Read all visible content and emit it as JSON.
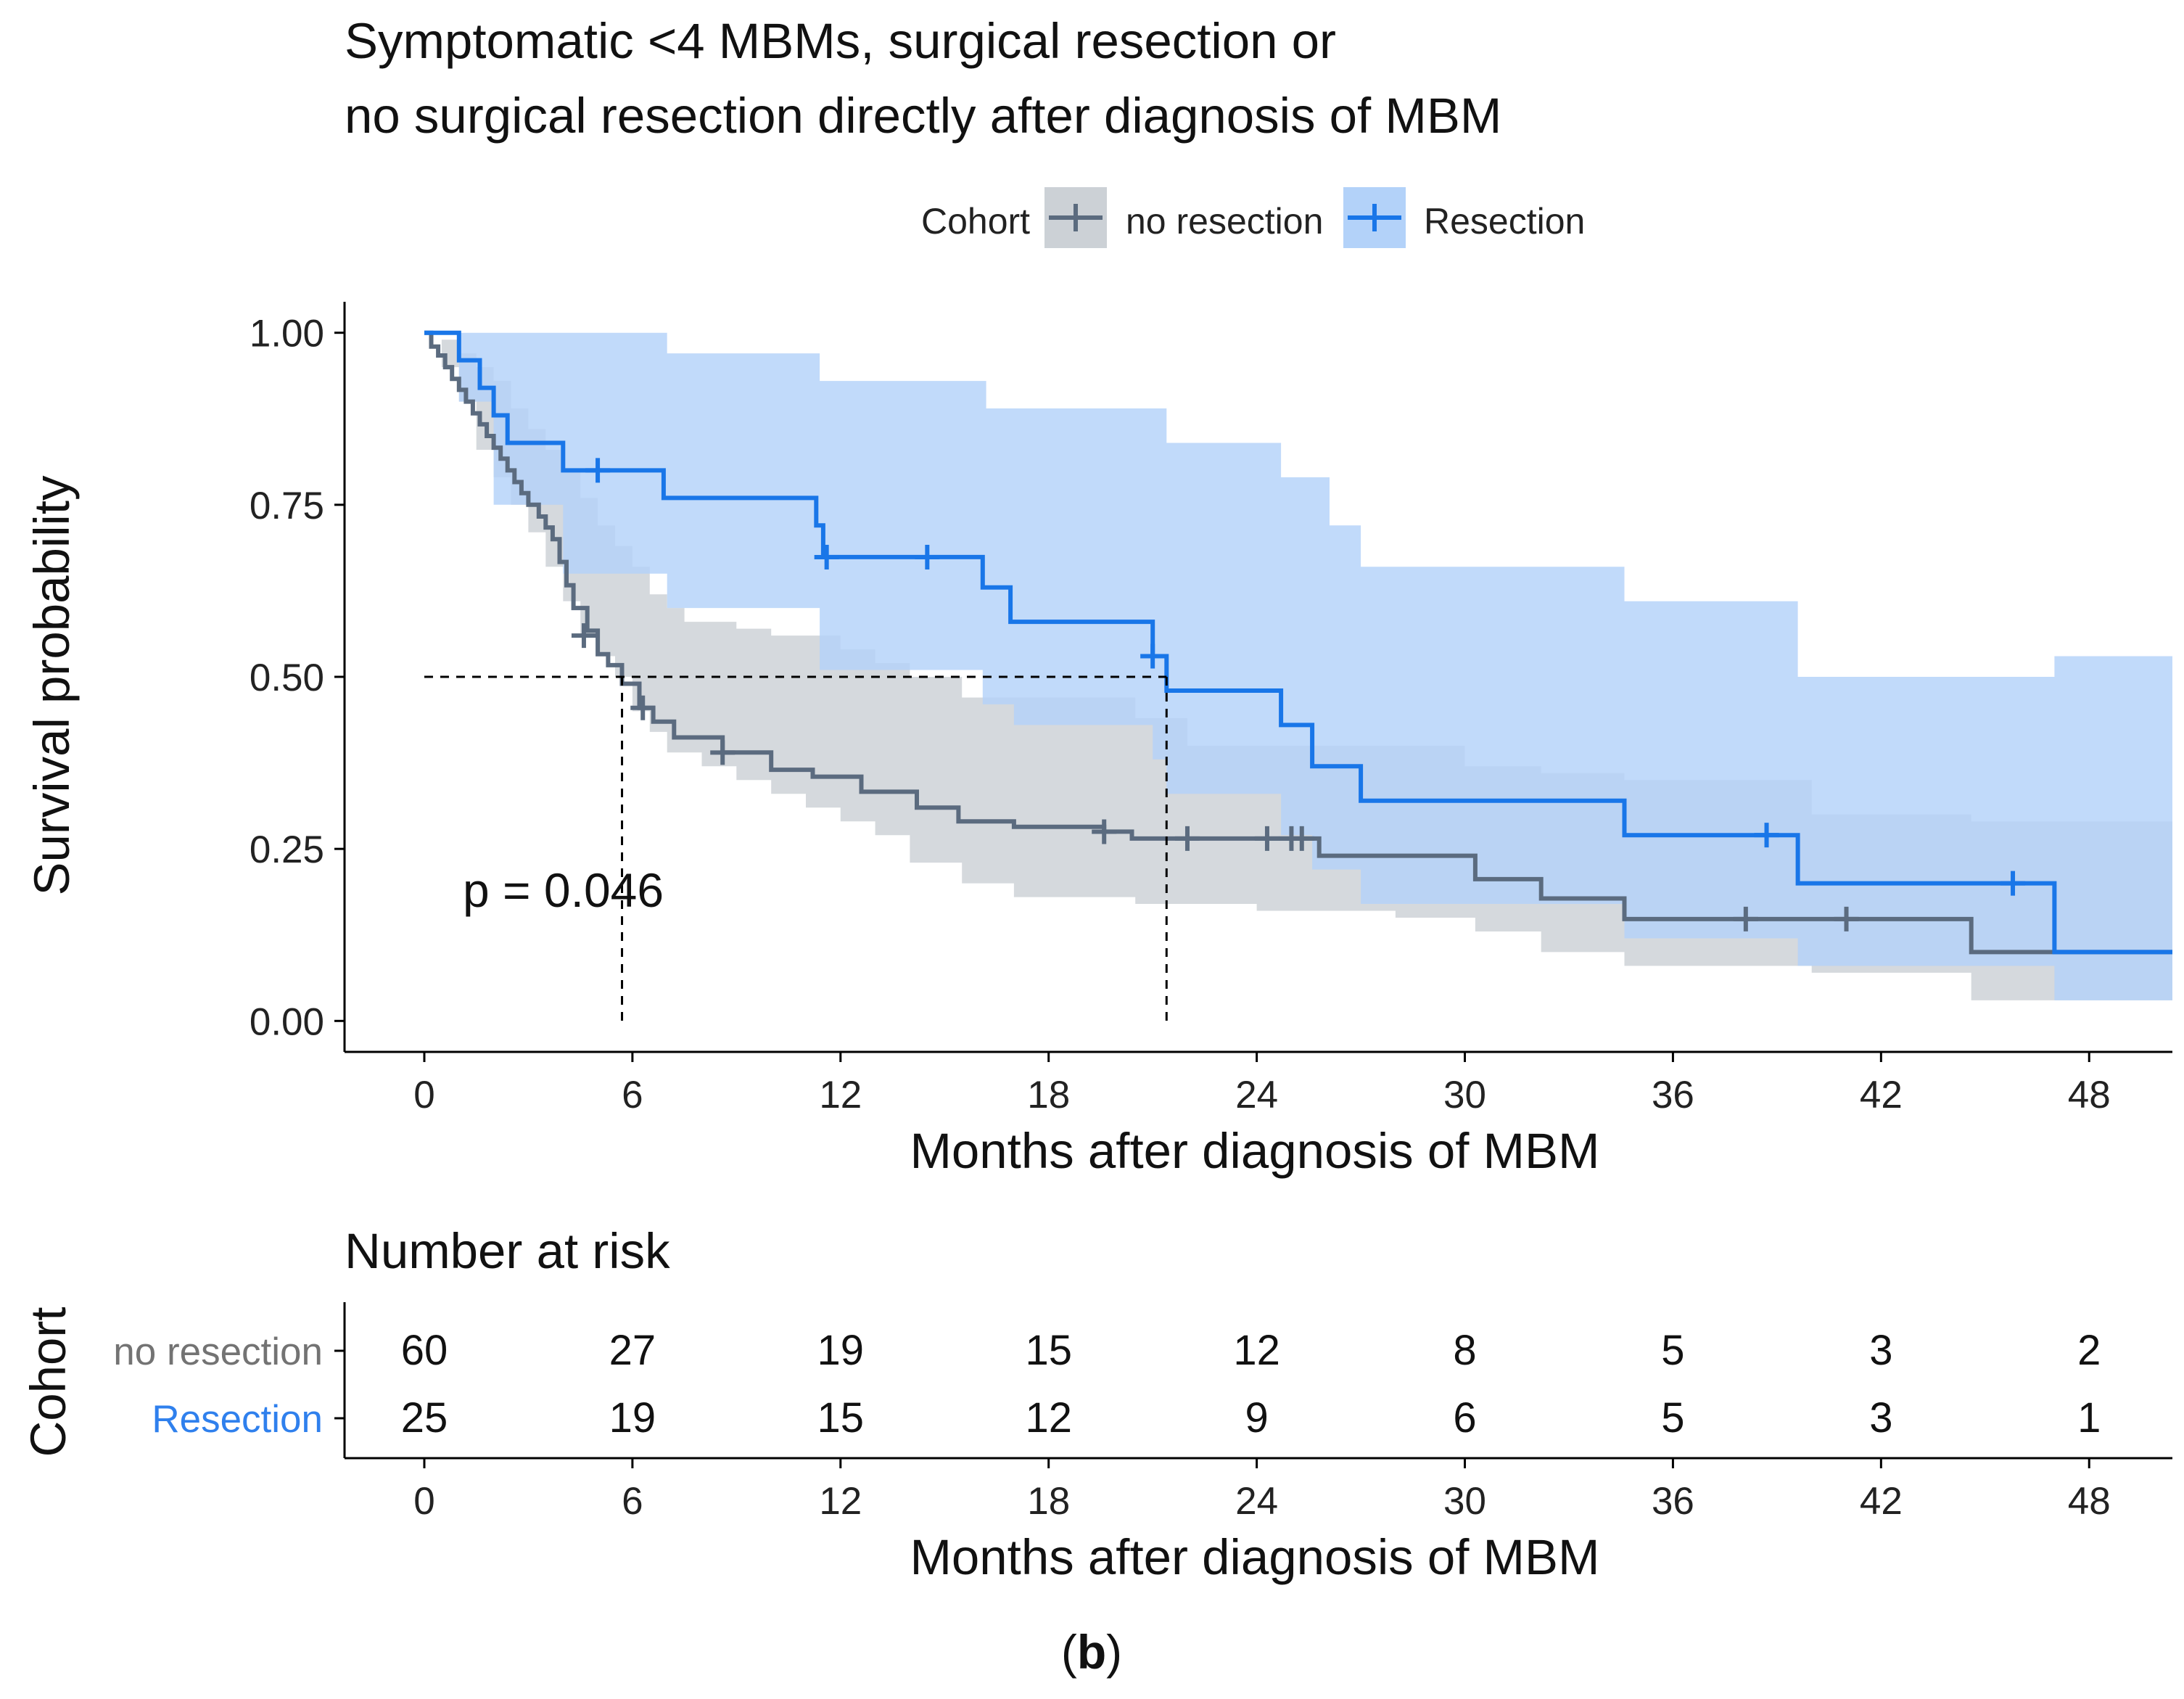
{
  "chart_data": [
    {
      "type": "line",
      "subtype": "kaplan-meier",
      "title": "Symptomatic <4 MBMs, surgical resection or\nno surgical resection directly after diagnosis of MBM",
      "title_lines": [
        "Symptomatic <4 MBMs, surgical resection or",
        "no surgical resection directly after diagnosis of MBM"
      ],
      "xlabel": "Months after diagnosis of MBM",
      "ylabel": "Survival probability",
      "xlim": [
        -2.3,
        50.4
      ],
      "ylim": [
        -0.045,
        1.045
      ],
      "xticks": [
        "0",
        "6",
        "12",
        "18",
        "24",
        "30",
        "36",
        "42",
        "48"
      ],
      "xtick_values": [
        0,
        6,
        12,
        18,
        24,
        30,
        36,
        42,
        48
      ],
      "yticks": [
        "0.00",
        "0.25",
        "0.50",
        "0.75",
        "1.00"
      ],
      "ytick_values": [
        0,
        0.25,
        0.5,
        0.75,
        1.0
      ],
      "legend": {
        "title": "Cohort",
        "position": "top",
        "entries": [
          "no resection",
          "Resection"
        ]
      },
      "annotation": "p = 0.046",
      "annotation_at": [
        1.1,
        0.2
      ],
      "median_lines": [
        {
          "y": 0.5,
          "x": 5.7
        },
        {
          "y": 0.5,
          "x": 21.4
        }
      ],
      "series": [
        {
          "name": "no resection",
          "color": "#5b6b7f",
          "band_color": "#ccd1d6",
          "steps": [
            [
              0,
              1.0
            ],
            [
              0.2,
              0.98
            ],
            [
              0.4,
              0.967
            ],
            [
              0.6,
              0.95
            ],
            [
              0.8,
              0.933
            ],
            [
              1.0,
              0.917
            ],
            [
              1.2,
              0.9
            ],
            [
              1.4,
              0.883
            ],
            [
              1.6,
              0.867
            ],
            [
              1.8,
              0.85
            ],
            [
              2.0,
              0.833
            ],
            [
              2.2,
              0.817
            ],
            [
              2.4,
              0.8
            ],
            [
              2.6,
              0.783
            ],
            [
              2.8,
              0.767
            ],
            [
              3.0,
              0.75
            ],
            [
              3.3,
              0.733
            ],
            [
              3.5,
              0.717
            ],
            [
              3.7,
              0.7
            ],
            [
              3.9,
              0.667
            ],
            [
              4.1,
              0.633
            ],
            [
              4.3,
              0.6
            ],
            [
              4.7,
              0.567
            ],
            [
              5.0,
              0.533
            ],
            [
              5.3,
              0.517
            ],
            [
              5.7,
              0.49
            ],
            [
              6.2,
              0.455
            ],
            [
              6.6,
              0.435
            ],
            [
              7.2,
              0.412
            ],
            [
              8.6,
              0.39
            ],
            [
              10.0,
              0.365
            ],
            [
              11.2,
              0.355
            ],
            [
              12.6,
              0.333
            ],
            [
              14.2,
              0.31
            ],
            [
              15.4,
              0.29
            ],
            [
              17.0,
              0.282
            ],
            [
              19.6,
              0.275
            ],
            [
              20.4,
              0.265
            ],
            [
              25.8,
              0.24
            ],
            [
              30.3,
              0.206
            ],
            [
              32.2,
              0.178
            ],
            [
              34.6,
              0.148
            ],
            [
              44.6,
              0.1
            ],
            [
              50.4,
              0.1
            ]
          ],
          "ci_upper": [
            [
              0,
              1.0
            ],
            [
              0.5,
              0.99
            ],
            [
              1.0,
              0.97
            ],
            [
              1.5,
              0.95
            ],
            [
              2.0,
              0.93
            ],
            [
              2.5,
              0.89
            ],
            [
              3.0,
              0.86
            ],
            [
              3.5,
              0.83
            ],
            [
              4.0,
              0.8
            ],
            [
              4.5,
              0.76
            ],
            [
              5.0,
              0.72
            ],
            [
              5.5,
              0.69
            ],
            [
              6.0,
              0.66
            ],
            [
              6.5,
              0.62
            ],
            [
              7.0,
              0.6
            ],
            [
              7.5,
              0.58
            ],
            [
              9.0,
              0.57
            ],
            [
              10.0,
              0.56
            ],
            [
              12.0,
              0.54
            ],
            [
              13.0,
              0.52
            ],
            [
              14.0,
              0.5
            ],
            [
              15.5,
              0.47
            ],
            [
              20.5,
              0.44
            ],
            [
              22.0,
              0.4
            ],
            [
              30.0,
              0.37
            ],
            [
              32.2,
              0.36
            ],
            [
              34.6,
              0.35
            ],
            [
              40.0,
              0.3
            ],
            [
              44.6,
              0.29
            ],
            [
              50.4,
              0.29
            ]
          ],
          "ci_lower": [
            [
              0,
              1.0
            ],
            [
              0.5,
              0.95
            ],
            [
              1.0,
              0.9
            ],
            [
              1.5,
              0.83
            ],
            [
              2.0,
              0.79
            ],
            [
              2.5,
              0.75
            ],
            [
              3.0,
              0.71
            ],
            [
              3.5,
              0.66
            ],
            [
              4.0,
              0.61
            ],
            [
              4.5,
              0.56
            ],
            [
              5.0,
              0.53
            ],
            [
              5.5,
              0.5
            ],
            [
              6.0,
              0.45
            ],
            [
              6.5,
              0.42
            ],
            [
              7.0,
              0.39
            ],
            [
              8.0,
              0.37
            ],
            [
              9.0,
              0.35
            ],
            [
              10.0,
              0.33
            ],
            [
              11.0,
              0.31
            ],
            [
              12.0,
              0.29
            ],
            [
              13.0,
              0.27
            ],
            [
              14.0,
              0.23
            ],
            [
              15.5,
              0.2
            ],
            [
              17.0,
              0.18
            ],
            [
              20.5,
              0.17
            ],
            [
              24.0,
              0.16
            ],
            [
              28.0,
              0.15
            ],
            [
              30.3,
              0.13
            ],
            [
              32.2,
              0.1
            ],
            [
              34.6,
              0.08
            ],
            [
              40.0,
              0.07
            ],
            [
              44.6,
              0.03
            ],
            [
              50.4,
              0.03
            ]
          ],
          "censor_marks": [
            [
              4.6,
              0.56
            ],
            [
              6.3,
              0.455
            ],
            [
              8.6,
              0.39
            ],
            [
              19.6,
              0.275
            ],
            [
              22.0,
              0.265
            ],
            [
              24.3,
              0.265
            ],
            [
              25.0,
              0.265
            ],
            [
              25.3,
              0.265
            ],
            [
              38.1,
              0.148
            ],
            [
              41.0,
              0.148
            ]
          ]
        },
        {
          "name": "Resection",
          "color": "#1976e8",
          "band_color": "#b3d2f9",
          "steps": [
            [
              0,
              1.0
            ],
            [
              1.0,
              0.96
            ],
            [
              1.6,
              0.92
            ],
            [
              2.0,
              0.88
            ],
            [
              2.4,
              0.84
            ],
            [
              4.0,
              0.8
            ],
            [
              6.9,
              0.76
            ],
            [
              11.3,
              0.72
            ],
            [
              11.5,
              0.674
            ],
            [
              16.1,
              0.63
            ],
            [
              16.9,
              0.58
            ],
            [
              21.0,
              0.53
            ],
            [
              21.4,
              0.48
            ],
            [
              24.7,
              0.43
            ],
            [
              25.6,
              0.37
            ],
            [
              27.0,
              0.32
            ],
            [
              34.6,
              0.27
            ],
            [
              39.6,
              0.2
            ],
            [
              47.0,
              0.1
            ],
            [
              50.4,
              0.1
            ]
          ],
          "ci_upper": [
            [
              0,
              1.0
            ],
            [
              2.3,
              1.0
            ],
            [
              7.0,
              0.97
            ],
            [
              11.4,
              0.93
            ],
            [
              16.2,
              0.89
            ],
            [
              21.4,
              0.84
            ],
            [
              24.7,
              0.79
            ],
            [
              26.1,
              0.72
            ],
            [
              27.0,
              0.66
            ],
            [
              34.6,
              0.61
            ],
            [
              39.6,
              0.5
            ],
            [
              47.0,
              0.53
            ],
            [
              50.4,
              0.53
            ]
          ],
          "ci_lower": [
            [
              0,
              1.0
            ],
            [
              1.0,
              0.9
            ],
            [
              2.0,
              0.75
            ],
            [
              4.0,
              0.65
            ],
            [
              7.0,
              0.6
            ],
            [
              11.4,
              0.51
            ],
            [
              16.1,
              0.46
            ],
            [
              17.0,
              0.43
            ],
            [
              21.0,
              0.38
            ],
            [
              21.4,
              0.33
            ],
            [
              24.7,
              0.27
            ],
            [
              25.6,
              0.22
            ],
            [
              27.0,
              0.17
            ],
            [
              34.6,
              0.12
            ],
            [
              39.6,
              0.08
            ],
            [
              47.0,
              0.03
            ],
            [
              50.4,
              0.03
            ]
          ],
          "censor_marks": [
            [
              5.0,
              0.8
            ],
            [
              11.6,
              0.674
            ],
            [
              14.5,
              0.674
            ],
            [
              21.0,
              0.53
            ],
            [
              38.7,
              0.27
            ],
            [
              45.8,
              0.2
            ]
          ]
        }
      ]
    },
    {
      "type": "table",
      "title": "Number at risk",
      "xlabel": "Months after diagnosis of MBM",
      "ylabel": "Cohort",
      "xticks": [
        "0",
        "6",
        "12",
        "18",
        "24",
        "30",
        "36",
        "42",
        "48"
      ],
      "rows": [
        {
          "label": "no resection",
          "color": "#737373",
          "values": [
            "60",
            "27",
            "19",
            "15",
            "12",
            "8",
            "5",
            "3",
            "2"
          ]
        },
        {
          "label": "Resection",
          "color": "#2f80ed",
          "values": [
            "25",
            "19",
            "15",
            "12",
            "9",
            "6",
            "5",
            "3",
            "1"
          ]
        }
      ]
    }
  ],
  "caption_letter": "b",
  "caption_open": "(",
  "caption_close": ")"
}
